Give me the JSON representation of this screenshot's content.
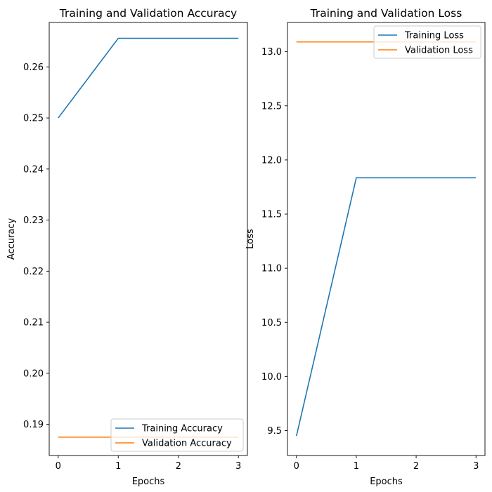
{
  "chart_data": [
    {
      "type": "line",
      "title": "Training and Validation Accuracy",
      "xlabel": "Epochs",
      "ylabel": "Accuracy",
      "x": [
        0,
        1,
        2,
        3
      ],
      "xlim": [
        -0.15,
        3.15
      ],
      "ylim": [
        0.1839,
        0.2687
      ],
      "xticks": [
        0,
        1,
        2,
        3
      ],
      "xtick_labels": [
        "0",
        "1",
        "2",
        "3"
      ],
      "yticks": [
        0.19,
        0.2,
        0.21,
        0.22,
        0.23,
        0.24,
        0.25,
        0.26
      ],
      "ytick_labels": [
        "0.19",
        "0.20",
        "0.21",
        "0.22",
        "0.23",
        "0.24",
        "0.25",
        "0.26"
      ],
      "grid": false,
      "legend_position": "lower right",
      "series": [
        {
          "name": "Training Accuracy",
          "color": "#1f77b4",
          "values": [
            0.25,
            0.2656,
            0.2656,
            0.2656
          ]
        },
        {
          "name": "Validation Accuracy",
          "color": "#ff7f0e",
          "values": [
            0.1875,
            0.1875,
            0.1875,
            0.1875
          ]
        }
      ]
    },
    {
      "type": "line",
      "title": "Training and Validation Loss",
      "xlabel": "Epochs",
      "ylabel": "Loss",
      "x": [
        0,
        1,
        2,
        3
      ],
      "xlim": [
        -0.15,
        3.15
      ],
      "ylim": [
        9.27,
        13.27
      ],
      "xticks": [
        0,
        1,
        2,
        3
      ],
      "xtick_labels": [
        "0",
        "1",
        "2",
        "3"
      ],
      "yticks": [
        9.5,
        10.0,
        10.5,
        11.0,
        11.5,
        12.0,
        12.5,
        13.0
      ],
      "ytick_labels": [
        "9.5",
        "10.0",
        "10.5",
        "11.0",
        "11.5",
        "12.0",
        "12.5",
        "13.0"
      ],
      "grid": false,
      "legend_position": "upper right",
      "series": [
        {
          "name": "Training Loss",
          "color": "#1f77b4",
          "values": [
            9.45,
            11.835,
            11.835,
            11.835
          ]
        },
        {
          "name": "Validation Loss",
          "color": "#ff7f0e",
          "values": [
            13.09,
            13.09,
            13.09,
            13.09
          ]
        }
      ]
    }
  ]
}
